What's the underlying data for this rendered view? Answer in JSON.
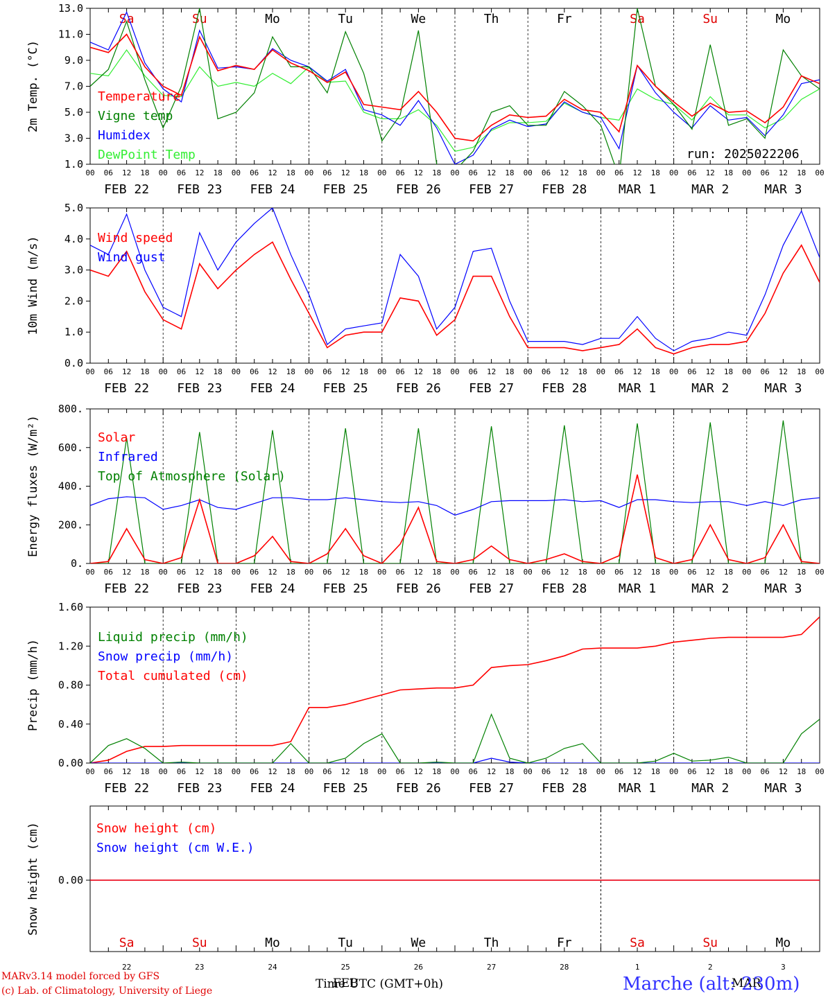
{
  "colors": {
    "red": "#ff0000",
    "green": "#008000",
    "blue": "#0000ff",
    "lightgreen": "#33ee33",
    "weekend": "#e00000",
    "weekday": "#000000"
  },
  "x_axis": {
    "hour_labels": [
      "00",
      "06",
      "12",
      "18"
    ],
    "final_label": "00",
    "date_labels": [
      "FEB 22",
      "FEB 23",
      "FEB 24",
      "FEB 25",
      "FEB 26",
      "FEB 27",
      "FEB 28",
      "MAR  1",
      "MAR  2",
      "MAR  3"
    ],
    "weekdays": [
      {
        "label": "Sa",
        "weekend": true
      },
      {
        "label": "Su",
        "weekend": true
      },
      {
        "label": "Mo",
        "weekend": false
      },
      {
        "label": "Tu",
        "weekend": false
      },
      {
        "label": "We",
        "weekend": false
      },
      {
        "label": "Th",
        "weekend": false
      },
      {
        "label": "Fr",
        "weekend": false
      },
      {
        "label": "Sa",
        "weekend": true
      },
      {
        "label": "Su",
        "weekend": true
      },
      {
        "label": "Mo",
        "weekend": false
      }
    ],
    "day_numbers": [
      "22",
      "23",
      "24",
      "25",
      "26",
      "27",
      "28",
      "1",
      "2",
      "3"
    ],
    "month_label": "MAR",
    "time_label": "Time UTC (GMT+0h)",
    "time_label_overlap": "FEB"
  },
  "run_label": "run: 2025022206",
  "footer": {
    "model": "MARv3.14 model forced by GFS",
    "credit": "(c) Lab. of Climatology, University of Liege",
    "station": "Marche (alt: 230m)"
  },
  "chart_data": [
    {
      "type": "line",
      "ylabel": "2m Temp. (°C)",
      "ylim": [
        1.0,
        13.0
      ],
      "yticks": [
        "1.0",
        "3.0",
        "5.0",
        "7.0",
        "9.0",
        "11.0",
        "13.0"
      ],
      "x_hours": [
        0,
        6,
        12,
        18,
        24,
        30,
        36,
        42,
        48,
        54,
        60,
        66,
        72,
        78,
        84,
        90,
        96,
        102,
        108,
        114,
        120,
        126,
        132,
        138,
        144,
        150,
        156,
        162,
        168,
        174,
        180,
        186,
        192,
        198,
        204,
        210,
        216,
        222,
        228,
        234,
        240
      ],
      "series": [
        {
          "name": "Temperature",
          "color": "red",
          "values": [
            10.0,
            9.6,
            11.0,
            8.5,
            7.0,
            6.3,
            10.8,
            8.2,
            8.6,
            8.3,
            9.8,
            8.8,
            8.2,
            7.3,
            8.1,
            5.6,
            5.4,
            5.2,
            6.6,
            5.0,
            3.0,
            2.8,
            4.0,
            4.8,
            4.6,
            4.7,
            6.0,
            5.2,
            5.0,
            3.5,
            8.6,
            7.0,
            5.8,
            4.7,
            5.7,
            5.0,
            5.1,
            4.2,
            5.4,
            7.8,
            7.2
          ]
        },
        {
          "name": "Vigne temp",
          "color": "green",
          "values": [
            7.0,
            8.3,
            12.0,
            7.5,
            3.8,
            7.0,
            13.0,
            4.5,
            5.0,
            6.5,
            10.8,
            8.5,
            8.5,
            6.5,
            11.2,
            8.0,
            2.8,
            4.8,
            11.3,
            1.0,
            0.5,
            2.0,
            5.0,
            5.5,
            4.0,
            4.0,
            6.6,
            5.5,
            4.0,
            0.0,
            13.0,
            7.0,
            5.6,
            3.7,
            10.2,
            4.0,
            4.5,
            3.0,
            9.8,
            7.8,
            6.8
          ]
        },
        {
          "name": "Humidex",
          "color": "blue",
          "values": [
            10.4,
            9.8,
            12.7,
            8.8,
            6.8,
            5.8,
            11.3,
            8.4,
            8.5,
            8.3,
            9.9,
            9.0,
            8.5,
            7.4,
            8.3,
            5.2,
            4.8,
            4.0,
            5.9,
            3.8,
            1.0,
            1.7,
            3.7,
            4.4,
            3.9,
            4.1,
            5.8,
            5.0,
            4.6,
            2.2,
            8.6,
            6.5,
            5.0,
            3.8,
            5.5,
            4.4,
            4.6,
            3.2,
            4.8,
            7.2,
            7.5
          ]
        },
        {
          "name": "DewPoint Temp",
          "color": "lightgreen",
          "values": [
            8.0,
            7.8,
            9.8,
            7.8,
            6.3,
            6.2,
            8.5,
            7.0,
            7.3,
            7.0,
            8.0,
            7.2,
            8.5,
            7.3,
            7.4,
            5.0,
            4.5,
            4.5,
            5.2,
            4.0,
            2.0,
            2.3,
            3.6,
            4.2,
            4.2,
            4.3,
            5.7,
            5.0,
            4.6,
            4.4,
            6.8,
            6.0,
            5.6,
            4.4,
            6.2,
            4.8,
            4.8,
            3.8,
            4.5,
            6.0,
            6.8
          ]
        }
      ]
    },
    {
      "type": "line",
      "ylabel": "10m Wind (m/s)",
      "ylim": [
        0.0,
        5.0
      ],
      "yticks": [
        "0.0",
        "1.0",
        "2.0",
        "3.0",
        "4.0",
        "5.0"
      ],
      "x_hours": [
        0,
        6,
        12,
        18,
        24,
        30,
        36,
        42,
        48,
        54,
        60,
        66,
        72,
        78,
        84,
        90,
        96,
        102,
        108,
        114,
        120,
        126,
        132,
        138,
        144,
        150,
        156,
        162,
        168,
        174,
        180,
        186,
        192,
        198,
        204,
        210,
        216,
        222,
        228,
        234,
        240
      ],
      "series": [
        {
          "name": "Wind speed",
          "color": "red",
          "values": [
            3.0,
            2.8,
            3.6,
            2.3,
            1.4,
            1.1,
            3.2,
            2.4,
            3.0,
            3.5,
            3.9,
            2.7,
            1.6,
            0.5,
            0.9,
            1.0,
            1.0,
            2.1,
            2.0,
            0.9,
            1.4,
            2.8,
            2.8,
            1.5,
            0.5,
            0.5,
            0.5,
            0.4,
            0.5,
            0.6,
            1.1,
            0.5,
            0.3,
            0.5,
            0.6,
            0.6,
            0.7,
            1.6,
            2.9,
            3.8,
            2.6
          ]
        },
        {
          "name": "Wind gust",
          "color": "blue",
          "values": [
            3.8,
            3.5,
            4.8,
            3.0,
            1.8,
            1.5,
            4.2,
            3.0,
            3.9,
            4.5,
            5.0,
            3.5,
            2.2,
            0.6,
            1.1,
            1.2,
            1.3,
            3.5,
            2.8,
            1.1,
            1.8,
            3.6,
            3.7,
            2.0,
            0.7,
            0.7,
            0.7,
            0.6,
            0.8,
            0.8,
            1.5,
            0.8,
            0.4,
            0.7,
            0.8,
            1.0,
            0.9,
            2.2,
            3.8,
            4.9,
            3.4
          ]
        }
      ]
    },
    {
      "type": "line",
      "ylabel": "Energy fluxes (W/m²)",
      "ylim": [
        0,
        800
      ],
      "yticks": [
        "0.",
        "200.",
        "400.",
        "600.",
        "800."
      ],
      "x_hours": [
        0,
        6,
        12,
        18,
        24,
        30,
        36,
        42,
        48,
        54,
        60,
        66,
        72,
        78,
        84,
        90,
        96,
        102,
        108,
        114,
        120,
        126,
        132,
        138,
        144,
        150,
        156,
        162,
        168,
        174,
        180,
        186,
        192,
        198,
        204,
        210,
        216,
        222,
        228,
        234,
        240
      ],
      "series": [
        {
          "name": "Solar",
          "color": "red",
          "values": [
            0,
            10,
            180,
            20,
            0,
            30,
            330,
            0,
            0,
            40,
            140,
            10,
            0,
            50,
            180,
            40,
            0,
            100,
            290,
            10,
            0,
            20,
            90,
            20,
            0,
            20,
            50,
            10,
            0,
            40,
            460,
            30,
            0,
            20,
            200,
            20,
            0,
            30,
            200,
            10,
            0
          ]
        },
        {
          "name": "Infrared",
          "color": "blue",
          "values": [
            300,
            335,
            345,
            340,
            280,
            300,
            330,
            290,
            280,
            310,
            340,
            340,
            330,
            330,
            340,
            330,
            320,
            315,
            320,
            300,
            250,
            280,
            320,
            325,
            325,
            325,
            330,
            320,
            325,
            290,
            330,
            330,
            320,
            315,
            320,
            320,
            300,
            320,
            300,
            330,
            340
          ]
        },
        {
          "name": "Top of Atmosphere (Solar)",
          "color": "green",
          "values": [
            0,
            0,
            650,
            0,
            0,
            0,
            680,
            0,
            0,
            0,
            690,
            0,
            0,
            0,
            700,
            0,
            0,
            0,
            700,
            0,
            0,
            0,
            710,
            0,
            0,
            0,
            715,
            0,
            0,
            0,
            725,
            0,
            0,
            0,
            730,
            0,
            0,
            0,
            740,
            0,
            0
          ]
        }
      ]
    },
    {
      "type": "line",
      "ylabel": "Precip (mm/h)",
      "ylim": [
        0.0,
        1.6
      ],
      "yticks": [
        "0.00",
        "0.40",
        "0.80",
        "1.20",
        "1.60"
      ],
      "x_hours": [
        0,
        6,
        12,
        18,
        24,
        30,
        36,
        42,
        48,
        54,
        60,
        66,
        72,
        78,
        84,
        90,
        96,
        102,
        108,
        114,
        120,
        126,
        132,
        138,
        144,
        150,
        156,
        162,
        168,
        174,
        180,
        186,
        192,
        198,
        204,
        210,
        216,
        222,
        228,
        234,
        240
      ],
      "series": [
        {
          "name": "Liquid precip (mm/h)",
          "color": "green",
          "values": [
            0,
            0.18,
            0.25,
            0.15,
            0,
            0.01,
            0,
            0,
            0,
            0,
            0,
            0.2,
            0,
            0,
            0.05,
            0.2,
            0.3,
            0,
            0,
            0.01,
            0,
            0,
            0.5,
            0.05,
            0,
            0.05,
            0.15,
            0.2,
            0,
            0,
            0,
            0.02,
            0.1,
            0.02,
            0.03,
            0.06,
            0,
            0,
            0,
            0.3,
            0.45
          ]
        },
        {
          "name": "Snow precip (mm/h)",
          "color": "blue",
          "values": [
            0,
            0,
            0,
            0,
            0,
            0,
            0,
            0,
            0,
            0,
            0,
            0,
            0,
            0,
            0,
            0,
            0,
            0,
            0,
            0,
            0,
            0,
            0.05,
            0.01,
            0,
            0,
            0,
            0,
            0,
            0,
            0,
            0,
            0,
            0,
            0,
            0,
            0,
            0,
            0,
            0,
            0
          ]
        },
        {
          "name": "Total cumulated (cm)",
          "color": "red",
          "values": [
            0,
            0.03,
            0.12,
            0.17,
            0.17,
            0.18,
            0.18,
            0.18,
            0.18,
            0.18,
            0.18,
            0.22,
            0.57,
            0.57,
            0.6,
            0.65,
            0.7,
            0.75,
            0.76,
            0.77,
            0.77,
            0.8,
            0.98,
            1.0,
            1.01,
            1.05,
            1.1,
            1.17,
            1.18,
            1.18,
            1.18,
            1.2,
            1.24,
            1.26,
            1.28,
            1.29,
            1.29,
            1.29,
            1.29,
            1.32,
            1.5
          ]
        }
      ]
    },
    {
      "type": "line",
      "ylabel": "Snow height (cm)",
      "yticks": [
        "0.00"
      ],
      "x_hours": [
        0,
        240
      ],
      "series": [
        {
          "name": "Snow height (cm)",
          "color": "red",
          "values": [
            0,
            0
          ]
        },
        {
          "name": "Snow height (cm W.E.)",
          "color": "blue",
          "values": [
            0,
            0
          ]
        }
      ]
    }
  ]
}
